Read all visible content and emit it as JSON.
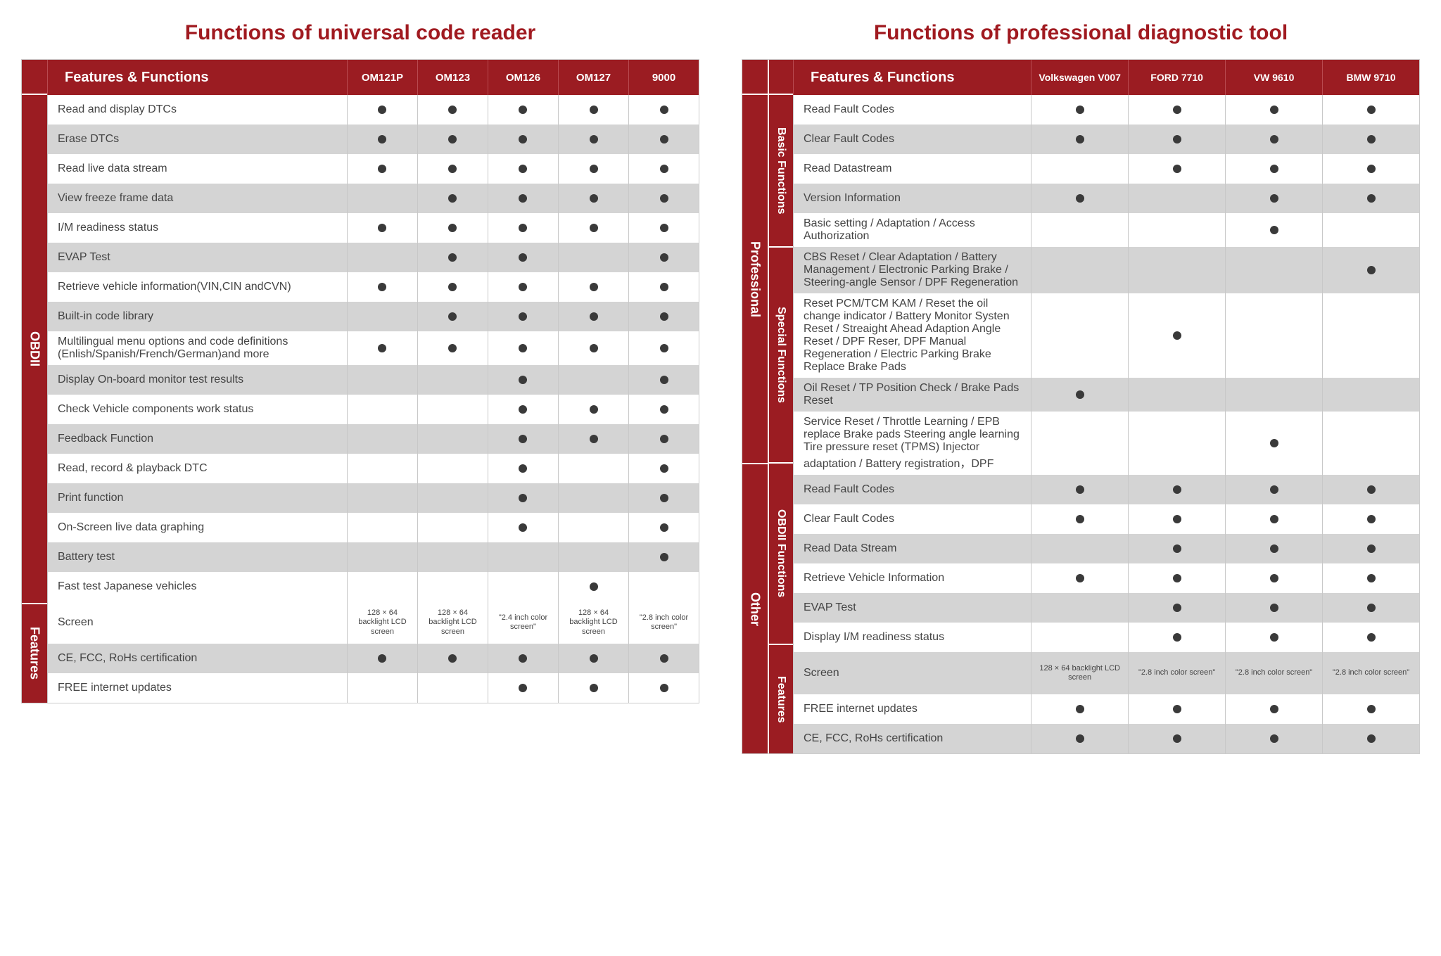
{
  "colors": {
    "accent": "#9b1c22",
    "title": "#a01a20",
    "alt_row": "#d4d4d4",
    "dot": "#3a3a3a",
    "border": "#c8c8c8",
    "text": "#444444",
    "white": "#ffffff"
  },
  "left": {
    "title": "Functions of universal code reader",
    "header_label": "Features & Functions",
    "columns": [
      "OM121P",
      "OM123",
      "OM126",
      "OM127",
      "9000"
    ],
    "groups": [
      {
        "label": "OBDII",
        "rows": [
          {
            "feature": "Read and display DTCs",
            "marks": [
              true,
              true,
              true,
              true,
              true
            ]
          },
          {
            "feature": "Erase DTCs",
            "marks": [
              true,
              true,
              true,
              true,
              true
            ]
          },
          {
            "feature": "Read live data stream",
            "marks": [
              true,
              true,
              true,
              true,
              true
            ]
          },
          {
            "feature": "View freeze frame data",
            "marks": [
              false,
              true,
              true,
              true,
              true
            ]
          },
          {
            "feature": "I/M readiness status",
            "marks": [
              true,
              true,
              true,
              true,
              true
            ]
          },
          {
            "feature": "EVAP Test",
            "marks": [
              false,
              true,
              true,
              false,
              true
            ]
          },
          {
            "feature": "Retrieve vehicle information(VIN,CIN andCVN)",
            "marks": [
              true,
              true,
              true,
              true,
              true
            ]
          },
          {
            "feature": "Built-in code library",
            "marks": [
              false,
              true,
              true,
              true,
              true
            ]
          },
          {
            "feature": "Multilingual menu options and code definitions (Enlish/Spanish/French/German)and more",
            "marks": [
              true,
              true,
              true,
              true,
              true
            ]
          },
          {
            "feature": "Display On-board monitor test results",
            "marks": [
              false,
              false,
              true,
              false,
              true
            ]
          },
          {
            "feature": "Check Vehicle components work status",
            "marks": [
              false,
              false,
              true,
              true,
              true
            ]
          },
          {
            "feature": "Feedback Function",
            "marks": [
              false,
              false,
              true,
              true,
              true
            ]
          },
          {
            "feature": "Read, record & playback DTC",
            "marks": [
              false,
              false,
              true,
              false,
              true
            ]
          },
          {
            "feature": "Print function",
            "marks": [
              false,
              false,
              true,
              false,
              true
            ]
          },
          {
            "feature": "On-Screen live data graphing",
            "marks": [
              false,
              false,
              true,
              false,
              true
            ]
          },
          {
            "feature": "Battery test",
            "marks": [
              false,
              false,
              false,
              false,
              true
            ]
          },
          {
            "feature": "Fast test Japanese vehicles",
            "marks": [
              false,
              false,
              false,
              true,
              false
            ]
          }
        ]
      },
      {
        "label": "Features",
        "rows": [
          {
            "feature": "Screen",
            "text": [
              "128 × 64 backlight LCD screen",
              "128 × 64 backlight LCD screen",
              "\"2.4 inch color screen\"",
              "128 × 64 backlight LCD screen",
              "\"2.8 inch color screen\""
            ]
          },
          {
            "feature": "CE, FCC, RoHs certification",
            "marks": [
              true,
              true,
              true,
              true,
              true
            ]
          },
          {
            "feature": "FREE internet updates",
            "marks": [
              false,
              false,
              true,
              true,
              true
            ]
          }
        ]
      }
    ]
  },
  "right": {
    "title": "Functions of professional diagnostic tool",
    "header_label": "Features & Functions",
    "columns": [
      "Volkswagen V007",
      "FORD 7710",
      "VW 9610",
      "BMW 9710"
    ],
    "groups": [
      {
        "label": "Professional",
        "subgroups": [
          {
            "label": "Basic Functions",
            "rows": [
              {
                "feature": "Read Fault Codes",
                "marks": [
                  true,
                  true,
                  true,
                  true
                ]
              },
              {
                "feature": "Clear Fault Codes",
                "marks": [
                  true,
                  true,
                  true,
                  true
                ]
              },
              {
                "feature": "Read Datastream",
                "marks": [
                  false,
                  true,
                  true,
                  true
                ]
              },
              {
                "feature": "Version Information",
                "marks": [
                  true,
                  false,
                  true,
                  true
                ]
              },
              {
                "feature": "Basic setting / Adaptation / Access Authorization",
                "marks": [
                  false,
                  false,
                  true,
                  false
                ]
              }
            ]
          },
          {
            "label": "Special Functions",
            "rows": [
              {
                "feature": "CBS Reset / Clear Adaptation / Battery Management / Electronic Parking Brake / Steering-angle Sensor / DPF Regeneration",
                "marks": [
                  false,
                  false,
                  false,
                  true
                ],
                "tall": true
              },
              {
                "feature": "Reset PCM/TCM KAM / Reset the oil change indicator / Battery Monitor Systen Reset / Streaight Ahead Adaption Angle Reset / DPF Reser, DPF Manual Regeneration / Electric Parking Brake Replace Brake Pads",
                "marks": [
                  false,
                  true,
                  false,
                  false
                ],
                "xtall": true
              },
              {
                "feature": "Oil Reset / TP Position Check / Brake Pads Reset",
                "marks": [
                  true,
                  false,
                  false,
                  false
                ]
              },
              {
                "feature": "Service Reset / Throttle Learning / EPB replace Brake pads Steering angle learning Tire pressure reset (TPMS) Injector adaptation / Battery registration，DPF",
                "marks": [
                  false,
                  false,
                  true,
                  false
                ],
                "tall": true
              }
            ]
          }
        ]
      },
      {
        "label": "Other",
        "subgroups": [
          {
            "label": "OBDII Functions",
            "rows": [
              {
                "feature": "Read Fault Codes",
                "marks": [
                  true,
                  true,
                  true,
                  true
                ]
              },
              {
                "feature": "Clear Fault Codes",
                "marks": [
                  true,
                  true,
                  true,
                  true
                ]
              },
              {
                "feature": "Read Data Stream",
                "marks": [
                  false,
                  true,
                  true,
                  true
                ]
              },
              {
                "feature": "Retrieve Vehicle Information",
                "marks": [
                  true,
                  true,
                  true,
                  true
                ]
              },
              {
                "feature": "EVAP Test",
                "marks": [
                  false,
                  true,
                  true,
                  true
                ]
              },
              {
                "feature": "Display I/M readiness status",
                "marks": [
                  false,
                  true,
                  true,
                  true
                ]
              }
            ]
          },
          {
            "label": "Features",
            "rows": [
              {
                "feature": "Screen",
                "text": [
                  "128 × 64 backlight LCD screen",
                  "\"2.8 inch color screen\"",
                  "\"2.8 inch color screen\"",
                  "\"2.8 inch color screen\""
                ]
              },
              {
                "feature": "FREE internet updates",
                "marks": [
                  true,
                  true,
                  true,
                  true
                ]
              },
              {
                "feature": "CE, FCC, RoHs certification",
                "marks": [
                  true,
                  true,
                  true,
                  true
                ]
              }
            ]
          }
        ]
      }
    ]
  }
}
